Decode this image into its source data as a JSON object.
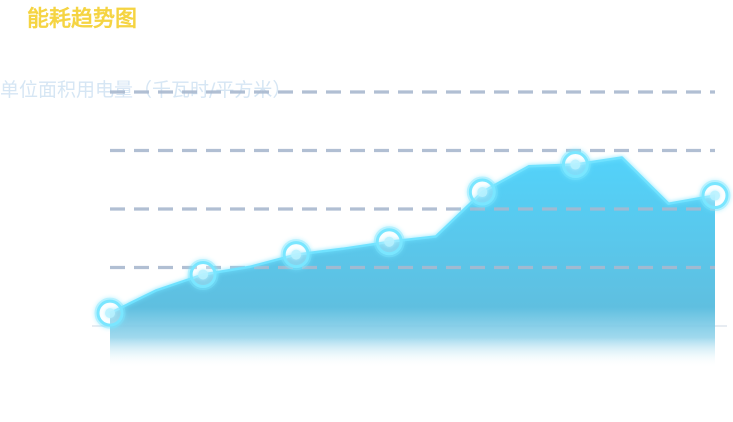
{
  "title": "能耗趋势图",
  "colors": {
    "title": "#f5d442",
    "ylabel": "#d6e6f4",
    "grid": "#a9b9cf",
    "baseline": "#dfe6ee",
    "area_top": "#52d3fb",
    "area_bottom": "#ffffff",
    "line": "#6fe2ff",
    "marker_ring": "#7ae6ff",
    "marker_fill": "#b9f2ff"
  },
  "chart_data": {
    "type": "area",
    "title": "",
    "xlabel": "",
    "ylabel": "单位面积用电量（千瓦时/平方米）",
    "grid": true,
    "grid_style": "dashed",
    "ylim": [
      0,
      4
    ],
    "x": [
      1,
      2,
      3,
      4,
      5,
      6,
      7,
      8,
      9,
      10,
      11,
      12,
      13,
      14
    ],
    "values": [
      0.22,
      0.61,
      0.88,
      1.01,
      1.22,
      1.32,
      1.44,
      1.53,
      2.29,
      2.73,
      2.76,
      2.88,
      2.09,
      2.23
    ],
    "markers": [
      1,
      3,
      5,
      7,
      9,
      11,
      14
    ]
  }
}
